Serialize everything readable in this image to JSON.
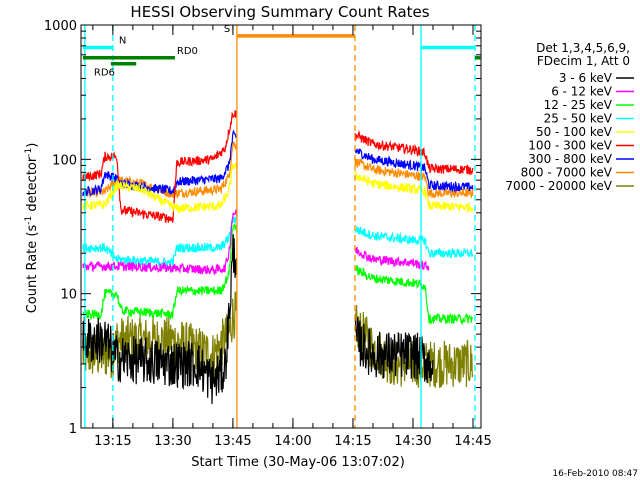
{
  "chart_data": {
    "type": "line",
    "title": "HESSI Observing Summary Count Rates",
    "xlabel": "Start Time (30-May-06 13:07:02)",
    "ylabel": "Count Rate (s⁻¹ detector⁻¹)",
    "ylabel_parts": {
      "main": "Count Rate (s",
      "sup1": "-1",
      "mid": " detector",
      "sup2": "-1",
      "end": ")"
    },
    "yscale": "log",
    "ylim": [
      1,
      1000
    ],
    "xlim": [
      "13:07:02",
      "14:47:00"
    ],
    "x_ticks": [
      "13:15",
      "13:30",
      "13:45",
      "14:00",
      "14:15",
      "14:30",
      "14:45"
    ],
    "y_ticks": [
      "1",
      "10",
      "100",
      "1000"
    ],
    "grid": false,
    "legend_position": "right",
    "legend_header": [
      "Det 1,3,4,5,6,9,",
      "FDecim 1, Att 0"
    ],
    "series": [
      {
        "name": "3 - 6 keV",
        "color": "#000000",
        "points": [
          [
            "13:07:30",
            4.5
          ],
          [
            "13:13:00",
            4.5
          ],
          [
            "13:16:00",
            3.3
          ],
          [
            "13:30:00",
            3.0
          ],
          [
            "13:36:00",
            3.0
          ],
          [
            "13:40:00",
            2.2
          ],
          [
            "13:43:00",
            2.8
          ],
          [
            "13:44:00",
            6.5
          ],
          [
            "13:45:00",
            20
          ],
          [
            "14:16:00",
            4.5
          ],
          [
            "14:20:00",
            3.5
          ],
          [
            "14:30:00",
            3.5
          ],
          [
            "14:35:00",
            3.0
          ]
        ]
      },
      {
        "name": "6 - 12 keV",
        "color": "#ff00ff",
        "points": [
          [
            "13:07:30",
            16
          ],
          [
            "13:16:00",
            16
          ],
          [
            "13:30:00",
            15.5
          ],
          [
            "13:40:00",
            15
          ],
          [
            "13:43:00",
            15.5
          ],
          [
            "13:44:00",
            20
          ],
          [
            "13:45:00",
            40
          ],
          [
            "14:16:00",
            21
          ],
          [
            "14:20:00",
            18
          ],
          [
            "14:30:00",
            17
          ],
          [
            "14:33:00",
            16
          ],
          [
            "14:34:00",
            16
          ]
        ]
      },
      {
        "name": "12 - 25 keV",
        "color": "#00ff00",
        "points": [
          [
            "13:07:30",
            7
          ],
          [
            "13:12:00",
            7
          ],
          [
            "13:13:00",
            10
          ],
          [
            "13:16:00",
            10
          ],
          [
            "13:17:00",
            7.5
          ],
          [
            "13:30:00",
            7
          ],
          [
            "13:31:00",
            10.5
          ],
          [
            "13:42:00",
            10.5
          ],
          [
            "13:44:00",
            14
          ],
          [
            "13:45:00",
            32
          ],
          [
            "14:16:00",
            15
          ],
          [
            "14:20:00",
            13
          ],
          [
            "14:30:00",
            12
          ],
          [
            "14:33:00",
            11.5
          ],
          [
            "14:34:00",
            6.5
          ],
          [
            "14:45:00",
            6.5
          ]
        ]
      },
      {
        "name": "25 - 50 keV",
        "color": "#00ffff",
        "points": [
          [
            "13:07:30",
            22
          ],
          [
            "13:13:00",
            22
          ],
          [
            "13:16:00",
            18
          ],
          [
            "13:30:00",
            17
          ],
          [
            "13:31:00",
            22
          ],
          [
            "13:42:00",
            22
          ],
          [
            "13:44:00",
            26
          ],
          [
            "13:45:00",
            36
          ],
          [
            "14:16:00",
            30
          ],
          [
            "14:20:00",
            27
          ],
          [
            "14:30:00",
            25
          ],
          [
            "14:33:00",
            25
          ],
          [
            "14:34:00",
            20
          ],
          [
            "14:45:00",
            20
          ]
        ]
      },
      {
        "name": "50 - 100 keV",
        "color": "#ffff00",
        "points": [
          [
            "13:07:30",
            45
          ],
          [
            "13:13:00",
            46
          ],
          [
            "13:16:00",
            64
          ],
          [
            "13:22:00",
            60
          ],
          [
            "13:30:00",
            44
          ],
          [
            "13:31:00",
            43
          ],
          [
            "13:42:00",
            45
          ],
          [
            "13:44:00",
            58
          ],
          [
            "13:45:00",
            90
          ],
          [
            "14:16:00",
            75
          ],
          [
            "14:20:00",
            66
          ],
          [
            "14:30:00",
            60
          ],
          [
            "14:33:00",
            58
          ],
          [
            "14:34:00",
            45
          ],
          [
            "14:45:00",
            44
          ]
        ]
      },
      {
        "name": "100 - 300 keV",
        "color": "#ff0000",
        "points": [
          [
            "13:07:30",
            73
          ],
          [
            "13:12:00",
            78
          ],
          [
            "13:13:00",
            105
          ],
          [
            "13:16:00",
            105
          ],
          [
            "13:17:00",
            42
          ],
          [
            "13:30:00",
            36
          ],
          [
            "13:31:00",
            95
          ],
          [
            "13:40:00",
            100
          ],
          [
            "13:43:00",
            120
          ],
          [
            "13:45:00",
            220
          ],
          [
            "14:16:00",
            150
          ],
          [
            "14:20:00",
            130
          ],
          [
            "14:30:00",
            118
          ],
          [
            "14:33:00",
            112
          ],
          [
            "14:34:00",
            85
          ],
          [
            "14:45:00",
            84
          ]
        ]
      },
      {
        "name": "300 - 800 keV",
        "color": "#0000ff",
        "points": [
          [
            "13:07:30",
            57
          ],
          [
            "13:12:00",
            60
          ],
          [
            "13:13:00",
            78
          ],
          [
            "13:16:00",
            72
          ],
          [
            "13:17:00",
            66
          ],
          [
            "13:30:00",
            58
          ],
          [
            "13:31:00",
            68
          ],
          [
            "13:42:00",
            72
          ],
          [
            "13:44:00",
            90
          ],
          [
            "13:45:00",
            150
          ],
          [
            "14:16:00",
            115
          ],
          [
            "14:20:00",
            100
          ],
          [
            "14:30:00",
            90
          ],
          [
            "14:33:00",
            86
          ],
          [
            "14:34:00",
            64
          ],
          [
            "14:45:00",
            62
          ]
        ]
      },
      {
        "name": "800 - 7000 keV",
        "color": "#ff8c00",
        "points": [
          [
            "13:07:30",
            56
          ],
          [
            "13:13:00",
            57
          ],
          [
            "13:16:00",
            70
          ],
          [
            "13:22:00",
            66
          ],
          [
            "13:30:00",
            55
          ],
          [
            "13:31:00",
            56
          ],
          [
            "13:42:00",
            60
          ],
          [
            "13:44:00",
            75
          ],
          [
            "13:45:00",
            130
          ],
          [
            "14:16:00",
            95
          ],
          [
            "14:20:00",
            84
          ],
          [
            "14:30:00",
            76
          ],
          [
            "14:33:00",
            74
          ],
          [
            "14:34:00",
            56
          ],
          [
            "14:45:00",
            56
          ]
        ]
      },
      {
        "name": "7000 - 20000 keV",
        "color": "#808000",
        "points": [
          [
            "13:07:30",
            3.5
          ],
          [
            "13:15:00",
            3.5
          ],
          [
            "13:16:00",
            4.5
          ],
          [
            "13:30:00",
            4.5
          ],
          [
            "13:40:00",
            3.5
          ],
          [
            "13:44:00",
            5
          ],
          [
            "13:45:00",
            7
          ],
          [
            "14:16:00",
            5.5
          ],
          [
            "14:20:00",
            4.0
          ],
          [
            "14:25:00",
            3.0
          ],
          [
            "14:45:00",
            3.0
          ]
        ]
      }
    ],
    "state_bars": [
      {
        "label": "N",
        "color": "#00ffff",
        "segments": [
          [
            "13:07:30",
            "13:15:00"
          ],
          [
            "14:32:00",
            "14:45:30"
          ]
        ],
        "value": 680
      },
      {
        "label": "RD0",
        "color": "#008000",
        "segments": [
          [
            "13:07:30",
            "13:30:30"
          ],
          [
            "14:45:30",
            "14:46:50"
          ]
        ],
        "value": 570
      },
      {
        "label": "RD6",
        "color": "#008000",
        "segments": [
          [
            "13:14:30",
            "13:20:50"
          ]
        ],
        "value": 515
      },
      {
        "label": "S",
        "color": "#ff8c00",
        "segments": [
          [
            "13:46:00",
            "14:15:30"
          ]
        ],
        "value": 830
      }
    ],
    "vertical_lines": [
      {
        "time": "13:08:00",
        "color": "#00ffff",
        "style": "solid"
      },
      {
        "time": "13:15:00",
        "color": "#00ffff",
        "style": "dashed"
      },
      {
        "time": "13:46:00",
        "color": "#ff8c00",
        "style": "solid"
      },
      {
        "time": "14:15:30",
        "color": "#ff8c00",
        "style": "dashed"
      },
      {
        "time": "14:32:00",
        "color": "#00ffff",
        "style": "solid"
      },
      {
        "time": "14:45:30",
        "color": "#00ffff",
        "style": "dashed"
      }
    ],
    "gap": [
      "13:46:00",
      "14:15:30"
    ],
    "footer_date": "16-Feb-2010 08:47"
  }
}
